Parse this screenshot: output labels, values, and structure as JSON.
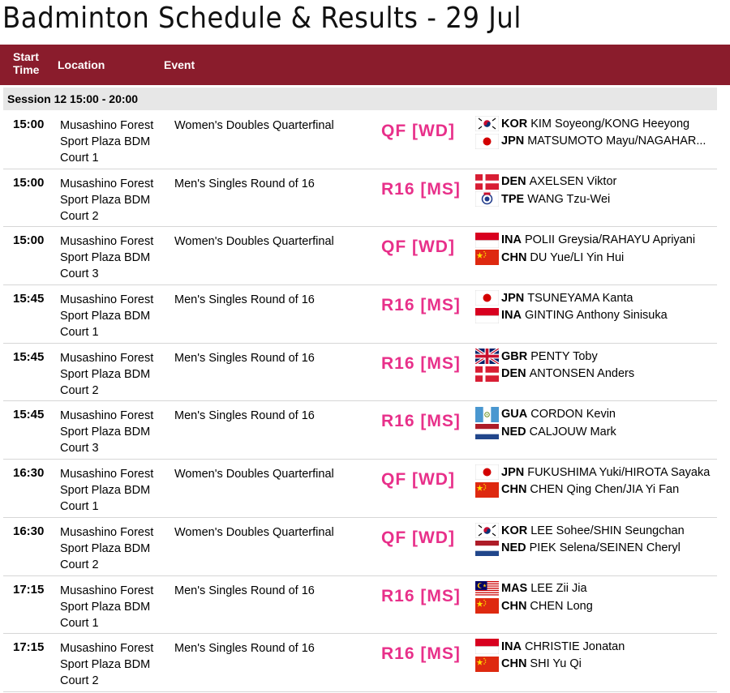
{
  "page": {
    "title": "Badminton Schedule & Results - 29 Jul"
  },
  "columns": {
    "start_time": "Start\nTime",
    "location": "Location",
    "event": "Event"
  },
  "session": {
    "label": "Session 12  15:00 - 20:00"
  },
  "rows": [
    {
      "time": "15:00",
      "location": "Musashino Forest Sport Plaza BDM Court 1",
      "event": "Women's Doubles Quarterfinal",
      "badge": "QF [WD]",
      "players": [
        {
          "flag": "kor",
          "code": "KOR",
          "name": "KIM Soyeong/KONG Heeyong"
        },
        {
          "flag": "jpn",
          "code": "JPN",
          "name": "MATSUMOTO Mayu/NAGAHAR..."
        }
      ]
    },
    {
      "time": "15:00",
      "location": "Musashino Forest Sport Plaza BDM Court 2",
      "event": "Men's Singles Round of 16",
      "badge": "R16 [MS]",
      "players": [
        {
          "flag": "den",
          "code": "DEN",
          "name": "AXELSEN Viktor"
        },
        {
          "flag": "tpe",
          "code": "TPE",
          "name": "WANG Tzu-Wei"
        }
      ]
    },
    {
      "time": "15:00",
      "location": "Musashino Forest Sport Plaza BDM Court 3",
      "event": "Women's Doubles Quarterfinal",
      "badge": "QF [WD]",
      "players": [
        {
          "flag": "ina",
          "code": "INA",
          "name": "POLII Greysia/RAHAYU Apriyani"
        },
        {
          "flag": "chn",
          "code": "CHN",
          "name": "DU Yue/LI Yin Hui"
        }
      ]
    },
    {
      "time": "15:45",
      "location": "Musashino Forest Sport Plaza BDM Court 1",
      "event": "Men's Singles Round of 16",
      "badge": "R16 [MS]",
      "players": [
        {
          "flag": "jpn",
          "code": "JPN",
          "name": "TSUNEYAMA Kanta"
        },
        {
          "flag": "ina",
          "code": "INA",
          "name": "GINTING Anthony Sinisuka"
        }
      ]
    },
    {
      "time": "15:45",
      "location": "Musashino Forest Sport Plaza BDM Court 2",
      "event": "Men's Singles Round of 16",
      "badge": "R16 [MS]",
      "players": [
        {
          "flag": "gbr",
          "code": "GBR",
          "name": "PENTY Toby"
        },
        {
          "flag": "den",
          "code": "DEN",
          "name": "ANTONSEN Anders"
        }
      ]
    },
    {
      "time": "15:45",
      "location": "Musashino Forest Sport Plaza BDM Court 3",
      "event": "Men's Singles Round of 16",
      "badge": "R16 [MS]",
      "players": [
        {
          "flag": "gua",
          "code": "GUA",
          "name": "CORDON Kevin"
        },
        {
          "flag": "ned",
          "code": "NED",
          "name": "CALJOUW Mark"
        }
      ]
    },
    {
      "time": "16:30",
      "location": "Musashino Forest Sport Plaza BDM Court 1",
      "event": "Women's Doubles Quarterfinal",
      "badge": "QF [WD]",
      "players": [
        {
          "flag": "jpn",
          "code": "JPN",
          "name": "FUKUSHIMA Yuki/HIROTA Sayaka"
        },
        {
          "flag": "chn",
          "code": "CHN",
          "name": "CHEN Qing Chen/JIA Yi Fan"
        }
      ]
    },
    {
      "time": "16:30",
      "location": "Musashino Forest Sport Plaza BDM Court 2",
      "event": "Women's Doubles Quarterfinal",
      "badge": "QF [WD]",
      "players": [
        {
          "flag": "kor",
          "code": "KOR",
          "name": "LEE Sohee/SHIN Seungchan"
        },
        {
          "flag": "ned",
          "code": "NED",
          "name": "PIEK Selena/SEINEN Cheryl"
        }
      ]
    },
    {
      "time": "17:15",
      "location": "Musashino Forest Sport Plaza BDM Court 1",
      "event": "Men's Singles Round of 16",
      "badge": "R16 [MS]",
      "players": [
        {
          "flag": "mas",
          "code": "MAS",
          "name": "LEE Zii Jia"
        },
        {
          "flag": "chn",
          "code": "CHN",
          "name": "CHEN Long"
        }
      ]
    },
    {
      "time": "17:15",
      "location": "Musashino Forest Sport Plaza BDM Court 2",
      "event": "Men's Singles Round of 16",
      "badge": "R16 [MS]",
      "players": [
        {
          "flag": "ina",
          "code": "INA",
          "name": "CHRISTIE Jonatan"
        },
        {
          "flag": "chn",
          "code": "CHN",
          "name": "SHI Yu Qi"
        }
      ]
    }
  ],
  "colors": {
    "header_bg": "#8a1c2c",
    "badge": "#e8308a",
    "session_bg": "#e7e7e7"
  }
}
